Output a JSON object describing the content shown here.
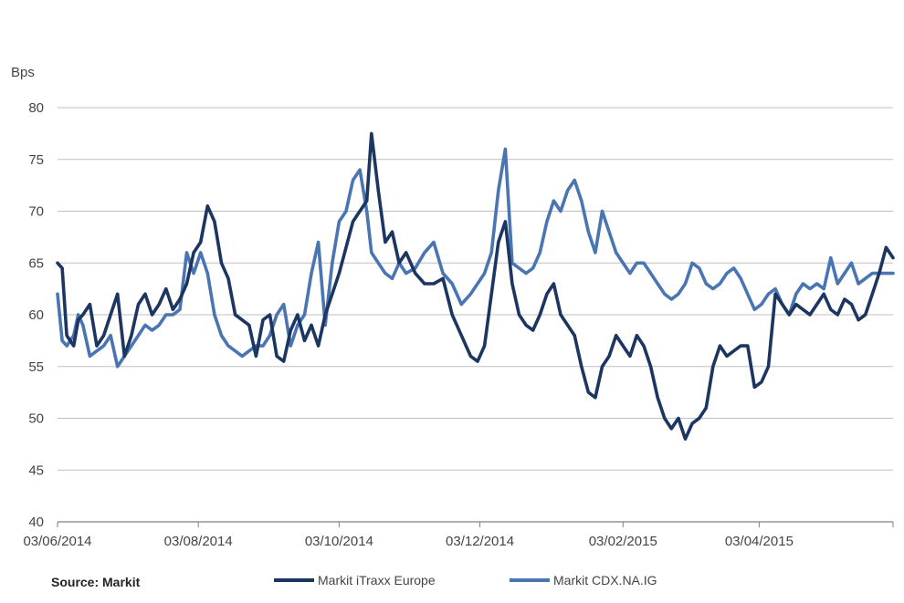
{
  "source": "Source: Markit",
  "colors": {
    "itraxx": "#1c3661",
    "cdx": "#4a75b3",
    "grid": "#bfbfbf",
    "axis": "#7f7f7f"
  },
  "chart_data": {
    "type": "line",
    "ylabel": "Bps",
    "ylim": [
      40,
      80
    ],
    "yticks": [
      40,
      45,
      50,
      55,
      60,
      65,
      70,
      75,
      80
    ],
    "xlim": [
      "2014-06-03",
      "2015-05-31"
    ],
    "xticks": [
      "03/06/2014",
      "03/08/2014",
      "03/10/2014",
      "03/12/2014",
      "03/02/2015",
      "03/04/2015"
    ],
    "xtick_dates": [
      "2014-06-03",
      "2014-08-03",
      "2014-10-03",
      "2014-12-03",
      "2015-02-03",
      "2015-04-03"
    ],
    "grid": "horizontal",
    "legend": "bottom",
    "series": [
      {
        "name": "Markit iTraxx Europe",
        "x": [
          "2014-06-03",
          "2014-06-05",
          "2014-06-07",
          "2014-06-10",
          "2014-06-12",
          "2014-06-14",
          "2014-06-17",
          "2014-06-20",
          "2014-06-23",
          "2014-06-26",
          "2014-06-29",
          "2014-07-02",
          "2014-07-05",
          "2014-07-08",
          "2014-07-11",
          "2014-07-14",
          "2014-07-17",
          "2014-07-20",
          "2014-07-23",
          "2014-07-26",
          "2014-07-29",
          "2014-08-01",
          "2014-08-04",
          "2014-08-07",
          "2014-08-10",
          "2014-08-13",
          "2014-08-16",
          "2014-08-19",
          "2014-08-22",
          "2014-08-25",
          "2014-08-28",
          "2014-08-31",
          "2014-09-03",
          "2014-09-06",
          "2014-09-09",
          "2014-09-12",
          "2014-09-15",
          "2014-09-18",
          "2014-09-21",
          "2014-09-24",
          "2014-09-27",
          "2014-09-30",
          "2014-10-03",
          "2014-10-06",
          "2014-10-09",
          "2014-10-12",
          "2014-10-15",
          "2014-10-17",
          "2014-10-20",
          "2014-10-23",
          "2014-10-26",
          "2014-10-29",
          "2014-11-01",
          "2014-11-05",
          "2014-11-09",
          "2014-11-13",
          "2014-11-17",
          "2014-11-21",
          "2014-11-25",
          "2014-11-29",
          "2014-12-02",
          "2014-12-05",
          "2014-12-08",
          "2014-12-11",
          "2014-12-14",
          "2014-12-17",
          "2014-12-20",
          "2014-12-23",
          "2014-12-26",
          "2014-12-29",
          "2015-01-01",
          "2015-01-04",
          "2015-01-07",
          "2015-01-10",
          "2015-01-13",
          "2015-01-16",
          "2015-01-19",
          "2015-01-22",
          "2015-01-25",
          "2015-01-28",
          "2015-01-31",
          "2015-02-03",
          "2015-02-06",
          "2015-02-09",
          "2015-02-12",
          "2015-02-15",
          "2015-02-18",
          "2015-02-21",
          "2015-02-24",
          "2015-02-27",
          "2015-03-02",
          "2015-03-05",
          "2015-03-08",
          "2015-03-11",
          "2015-03-14",
          "2015-03-17",
          "2015-03-20",
          "2015-03-23",
          "2015-03-26",
          "2015-03-29",
          "2015-04-01",
          "2015-04-04",
          "2015-04-07",
          "2015-04-10",
          "2015-04-13",
          "2015-04-16",
          "2015-04-19",
          "2015-04-22",
          "2015-04-25",
          "2015-04-28",
          "2015-05-01",
          "2015-05-04",
          "2015-05-07",
          "2015-05-10",
          "2015-05-13",
          "2015-05-16",
          "2015-05-19",
          "2015-05-22",
          "2015-05-25",
          "2015-05-28",
          "2015-05-31"
        ],
        "values": [
          65,
          64.5,
          58,
          57,
          59.5,
          60,
          61,
          57,
          58,
          60,
          62,
          56,
          58,
          61,
          62,
          60,
          61,
          62.5,
          60.5,
          61.5,
          63,
          66,
          67,
          70.5,
          69,
          65,
          63.5,
          60,
          59.5,
          59,
          56,
          59.5,
          60,
          56,
          55.5,
          58.5,
          60,
          57.5,
          59,
          57,
          60,
          62,
          64,
          66.5,
          69,
          70,
          71,
          77.5,
          72,
          67,
          68,
          65,
          66,
          64,
          63,
          63,
          63.5,
          60,
          58,
          56,
          55.5,
          57,
          62,
          67,
          69,
          63,
          60,
          59,
          58.5,
          60,
          62,
          63,
          60,
          59,
          58,
          55,
          52.5,
          52,
          55,
          56,
          58,
          57,
          56,
          58,
          57,
          55,
          52,
          50,
          49,
          50,
          48,
          49.5,
          50,
          51,
          55,
          57,
          56,
          56.5,
          57,
          57,
          53,
          53.5,
          55,
          62,
          61,
          60,
          61,
          60.5,
          60,
          61,
          62,
          60.5,
          60,
          61.5,
          61,
          59.5,
          60,
          62,
          64,
          66.5,
          65.5
        ]
      },
      {
        "name": "Markit CDX.NA.IG",
        "x": [
          "2014-06-03",
          "2014-06-05",
          "2014-06-07",
          "2014-06-10",
          "2014-06-12",
          "2014-06-14",
          "2014-06-17",
          "2014-06-20",
          "2014-06-23",
          "2014-06-26",
          "2014-06-29",
          "2014-07-02",
          "2014-07-05",
          "2014-07-08",
          "2014-07-11",
          "2014-07-14",
          "2014-07-17",
          "2014-07-20",
          "2014-07-23",
          "2014-07-26",
          "2014-07-29",
          "2014-08-01",
          "2014-08-04",
          "2014-08-07",
          "2014-08-10",
          "2014-08-13",
          "2014-08-16",
          "2014-08-19",
          "2014-08-22",
          "2014-08-25",
          "2014-08-28",
          "2014-08-31",
          "2014-09-03",
          "2014-09-06",
          "2014-09-09",
          "2014-09-12",
          "2014-09-15",
          "2014-09-18",
          "2014-09-21",
          "2014-09-24",
          "2014-09-27",
          "2014-09-30",
          "2014-10-03",
          "2014-10-06",
          "2014-10-09",
          "2014-10-12",
          "2014-10-15",
          "2014-10-17",
          "2014-10-20",
          "2014-10-23",
          "2014-10-26",
          "2014-10-29",
          "2014-11-01",
          "2014-11-05",
          "2014-11-09",
          "2014-11-13",
          "2014-11-17",
          "2014-11-21",
          "2014-11-25",
          "2014-11-29",
          "2014-12-02",
          "2014-12-05",
          "2014-12-08",
          "2014-12-11",
          "2014-12-14",
          "2014-12-17",
          "2014-12-20",
          "2014-12-23",
          "2014-12-26",
          "2014-12-29",
          "2015-01-01",
          "2015-01-04",
          "2015-01-07",
          "2015-01-10",
          "2015-01-13",
          "2015-01-16",
          "2015-01-19",
          "2015-01-22",
          "2015-01-25",
          "2015-01-28",
          "2015-01-31",
          "2015-02-03",
          "2015-02-06",
          "2015-02-09",
          "2015-02-12",
          "2015-02-15",
          "2015-02-18",
          "2015-02-21",
          "2015-02-24",
          "2015-02-27",
          "2015-03-02",
          "2015-03-05",
          "2015-03-08",
          "2015-03-11",
          "2015-03-14",
          "2015-03-17",
          "2015-03-20",
          "2015-03-23",
          "2015-03-26",
          "2015-03-29",
          "2015-04-01",
          "2015-04-04",
          "2015-04-07",
          "2015-04-10",
          "2015-04-13",
          "2015-04-16",
          "2015-04-19",
          "2015-04-22",
          "2015-04-25",
          "2015-04-28",
          "2015-05-01",
          "2015-05-04",
          "2015-05-07",
          "2015-05-10",
          "2015-05-13",
          "2015-05-16",
          "2015-05-19",
          "2015-05-22",
          "2015-05-25",
          "2015-05-28",
          "2015-05-31"
        ],
        "values": [
          62,
          57.5,
          57,
          58,
          60,
          59,
          56,
          56.5,
          57,
          58,
          55,
          56,
          57,
          58,
          59,
          58.5,
          59,
          60,
          60,
          60.5,
          66,
          64,
          66,
          64,
          60,
          58,
          57,
          56.5,
          56,
          56.5,
          57,
          57,
          58,
          60,
          61,
          57,
          59,
          60,
          64,
          67,
          59,
          65,
          69,
          70,
          73,
          74,
          70,
          66,
          65,
          64,
          63.5,
          65,
          64,
          64.5,
          66,
          67,
          64,
          63,
          61,
          62,
          63,
          64,
          66,
          72,
          76,
          65,
          64.5,
          64,
          64.5,
          66,
          69,
          71,
          70,
          72,
          73,
          71,
          68,
          66,
          70,
          68,
          66,
          65,
          64,
          65,
          65,
          64,
          63,
          62,
          61.5,
          62,
          63,
          65,
          64.5,
          63,
          62.5,
          63,
          64,
          64.5,
          63.5,
          62,
          60.5,
          61,
          62,
          62.5,
          61,
          60,
          62,
          63,
          62.5,
          63,
          62.5,
          65.5,
          63,
          64,
          65,
          63,
          63.5,
          64,
          64,
          64,
          64
        ]
      }
    ]
  }
}
